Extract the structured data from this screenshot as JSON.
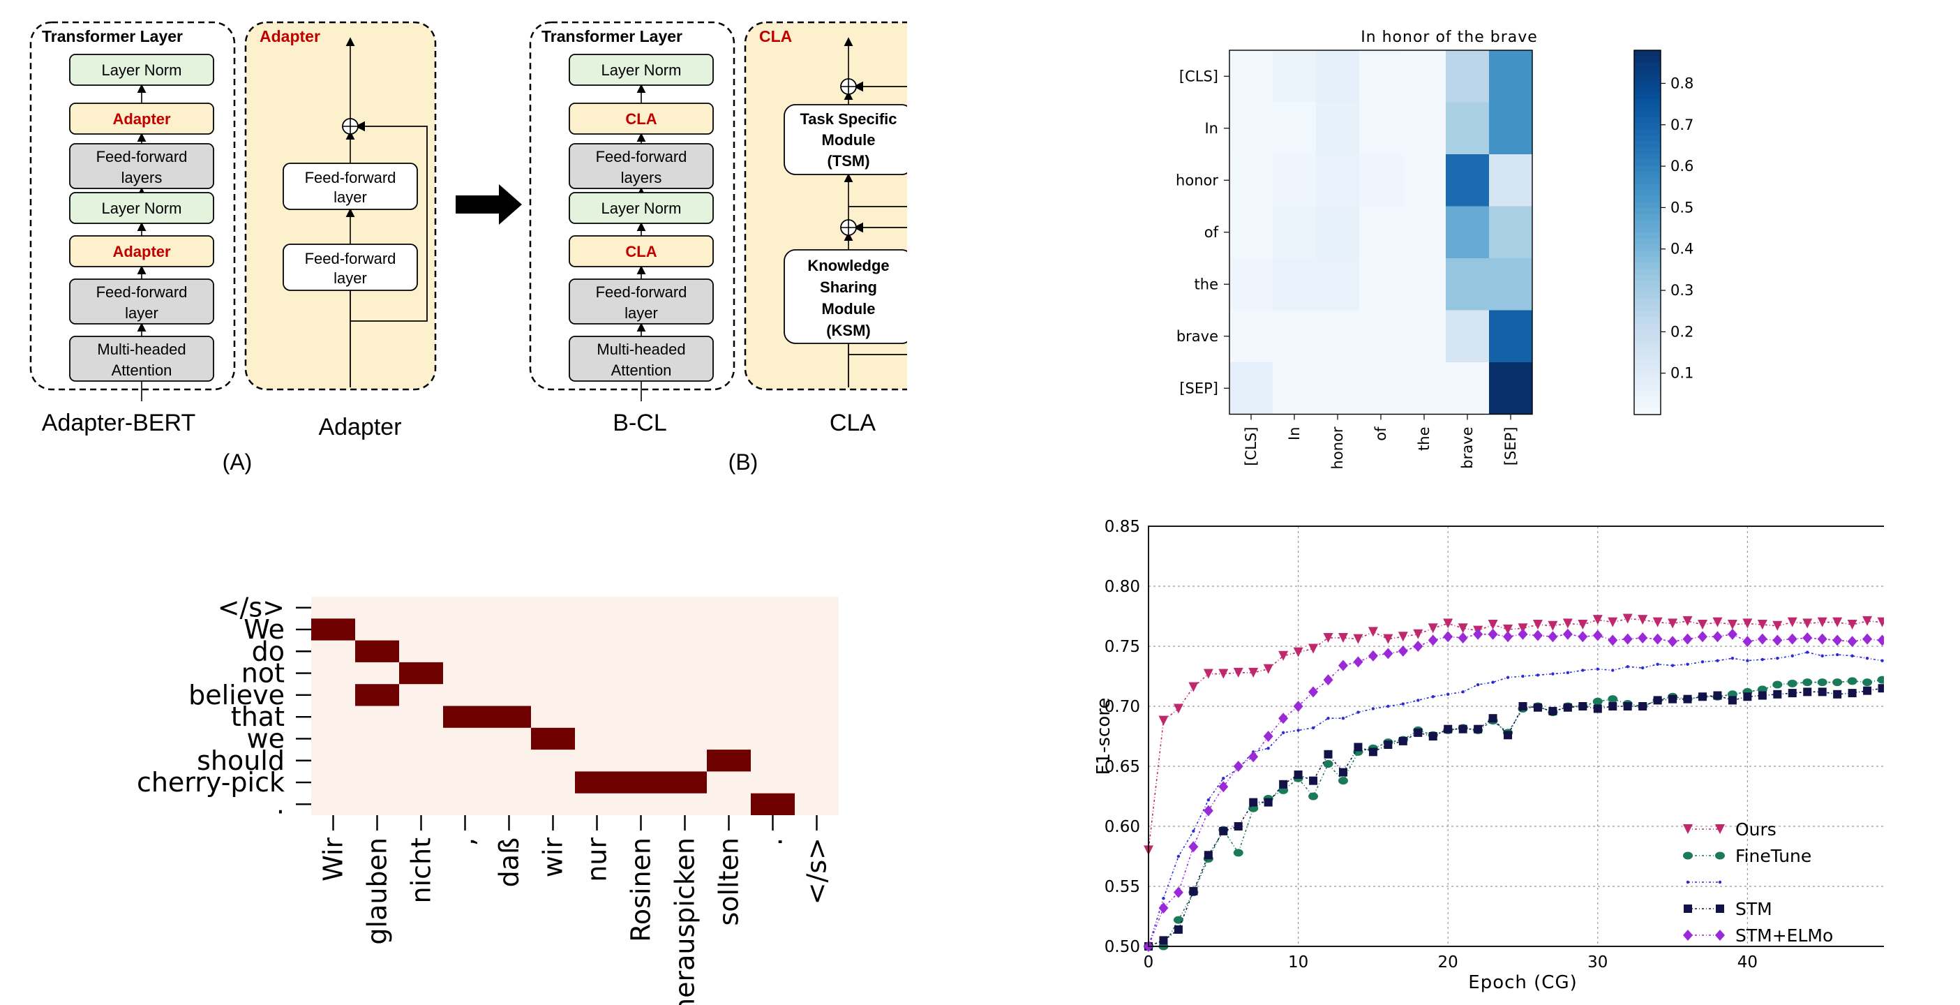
{
  "diagram": {
    "panelA": {
      "transformer_title": "Transformer Layer",
      "blocks": [
        "Layer Norm",
        "Adapter",
        "Feed-forward layers",
        "Layer Norm",
        "Adapter",
        "Feed-forward layer",
        "Multi-headed Attention"
      ],
      "adapter_title": "Adapter",
      "adapter_blocks": [
        "Feed-forward layer",
        "Feed-forward layer"
      ],
      "caption_left": "Adapter-BERT",
      "caption_right": "Adapter",
      "label": "(A)"
    },
    "panelB": {
      "transformer_title": "Transformer Layer",
      "blocks": [
        "Layer Norm",
        "CLA",
        "Feed-forward layers",
        "Layer Norm",
        "CLA",
        "Feed-forward layer",
        "Multi-headed Attention"
      ],
      "cla_title": "CLA",
      "cla_blocks": [
        "Task Specific Module (TSM)",
        "Knowledge Sharing Module (KSM)"
      ],
      "caption_left": "B-CL",
      "caption_right": "CLA",
      "label": "(B)"
    },
    "colors": {
      "adapter_fill": "#fdf0cc",
      "norm_fill": "#e4f3de",
      "gray_fill": "#d9d9d9",
      "red_text": "#c00000"
    }
  },
  "chart_data": [
    {
      "type": "heatmap",
      "title": "In honor of the brave",
      "rows": [
        "[CLS]",
        "In",
        "honor",
        "of",
        "the",
        "brave",
        "[SEP]"
      ],
      "cols": [
        "[CLS]",
        "In",
        "honor",
        "of",
        "the",
        "brave",
        "[SEP]"
      ],
      "values": [
        [
          0.02,
          0.05,
          0.08,
          0.03,
          0.02,
          0.25,
          0.55
        ],
        [
          0.02,
          0.03,
          0.07,
          0.03,
          0.02,
          0.3,
          0.55
        ],
        [
          0.03,
          0.04,
          0.06,
          0.04,
          0.03,
          0.68,
          0.15
        ],
        [
          0.03,
          0.05,
          0.07,
          0.03,
          0.02,
          0.45,
          0.3
        ],
        [
          0.04,
          0.06,
          0.06,
          0.02,
          0.02,
          0.35,
          0.35
        ],
        [
          0.02,
          0.03,
          0.03,
          0.02,
          0.02,
          0.15,
          0.72
        ],
        [
          0.08,
          0.02,
          0.02,
          0.02,
          0.02,
          0.02,
          0.88
        ]
      ],
      "colorbar_ticks": [
        "0.1",
        "0.2",
        "0.3",
        "0.4",
        "0.5",
        "0.6",
        "0.7",
        "0.8"
      ],
      "colorbar_range": [
        0,
        0.88
      ]
    },
    {
      "type": "heatmap",
      "title": "",
      "rows": [
        "</s>",
        "We",
        "do",
        "not",
        "believe",
        "that",
        "we",
        "should",
        "cherry-pick",
        "."
      ],
      "cols": [
        "Wir",
        "glauben",
        "nicht",
        ",",
        "daß",
        "wir",
        "nur",
        "Rosinen",
        "herauspicken",
        "sollten",
        ".",
        "</s>"
      ],
      "cells": [
        [
          1,
          0
        ],
        [
          2,
          1
        ],
        [
          3,
          2
        ],
        [
          4,
          1
        ],
        [
          5,
          3
        ],
        [
          5,
          4
        ],
        [
          6,
          5
        ],
        [
          7,
          9
        ],
        [
          8,
          6
        ],
        [
          8,
          7
        ],
        [
          8,
          8
        ],
        [
          9,
          10
        ]
      ],
      "background": "#fdf1ec",
      "active": "#6e0000"
    },
    {
      "type": "line",
      "xlabel": "Epoch (CG)",
      "ylabel": "F1-score",
      "xlim": [
        0,
        50
      ],
      "ylim": [
        0.5,
        0.85
      ],
      "xticks": [
        "0",
        "10",
        "20",
        "30",
        "40",
        "50"
      ],
      "yticks": [
        "0.50",
        "0.55",
        "0.60",
        "0.65",
        "0.70",
        "0.75",
        "0.80",
        "0.85"
      ],
      "x": [
        0,
        1,
        2,
        3,
        4,
        5,
        6,
        7,
        8,
        9,
        10,
        11,
        12,
        13,
        14,
        15,
        16,
        17,
        18,
        19,
        20,
        21,
        22,
        23,
        24,
        25,
        26,
        27,
        28,
        29,
        30,
        31,
        32,
        33,
        34,
        35,
        36,
        37,
        38,
        39,
        40,
        41,
        42,
        43,
        44,
        45,
        46,
        47,
        48,
        49
      ],
      "series": [
        {
          "name": "Ours",
          "color": "#c0286e",
          "marker": "triangle",
          "values": [
            0.58,
            0.688,
            0.698,
            0.716,
            0.727,
            0.727,
            0.728,
            0.728,
            0.731,
            0.742,
            0.745,
            0.748,
            0.757,
            0.757,
            0.756,
            0.762,
            0.756,
            0.758,
            0.76,
            0.765,
            0.769,
            0.765,
            0.763,
            0.768,
            0.764,
            0.765,
            0.768,
            0.767,
            0.769,
            0.768,
            0.772,
            0.77,
            0.773,
            0.772,
            0.77,
            0.769,
            0.771,
            0.768,
            0.77,
            0.768,
            0.769,
            0.768,
            0.767,
            0.77,
            0.769,
            0.77,
            0.77,
            0.768,
            0.771,
            0.77
          ]
        },
        {
          "name": "FineTune",
          "color": "#1a7a5a",
          "marker": "circle",
          "values": [
            0.5,
            0.5,
            0.522,
            0.545,
            0.573,
            0.597,
            0.578,
            0.615,
            0.623,
            0.63,
            0.64,
            0.625,
            0.652,
            0.638,
            0.662,
            0.665,
            0.67,
            0.672,
            0.68,
            0.676,
            0.68,
            0.682,
            0.68,
            0.688,
            0.678,
            0.698,
            0.7,
            0.695,
            0.7,
            0.7,
            0.704,
            0.706,
            0.702,
            0.7,
            0.705,
            0.708,
            0.706,
            0.708,
            0.708,
            0.71,
            0.712,
            0.714,
            0.718,
            0.719,
            0.72,
            0.72,
            0.72,
            0.721,
            0.72,
            0.722
          ]
        },
        {
          "name": "",
          "color": "#2a2ad8",
          "marker": "dot",
          "values": [
            0.5,
            0.54,
            0.575,
            0.596,
            0.622,
            0.64,
            0.648,
            0.662,
            0.665,
            0.678,
            0.68,
            0.682,
            0.69,
            0.69,
            0.695,
            0.698,
            0.7,
            0.702,
            0.705,
            0.708,
            0.71,
            0.712,
            0.718,
            0.72,
            0.724,
            0.725,
            0.726,
            0.727,
            0.728,
            0.73,
            0.731,
            0.73,
            0.733,
            0.732,
            0.735,
            0.734,
            0.735,
            0.737,
            0.738,
            0.74,
            0.738,
            0.739,
            0.74,
            0.742,
            0.745,
            0.742,
            0.743,
            0.742,
            0.74,
            0.738
          ]
        },
        {
          "name": "STM",
          "color": "#121248",
          "marker": "square",
          "values": [
            0.5,
            0.505,
            0.514,
            0.546,
            0.576,
            0.596,
            0.6,
            0.62,
            0.62,
            0.635,
            0.643,
            0.638,
            0.66,
            0.645,
            0.666,
            0.662,
            0.668,
            0.671,
            0.678,
            0.675,
            0.681,
            0.681,
            0.681,
            0.69,
            0.676,
            0.7,
            0.699,
            0.696,
            0.699,
            0.7,
            0.698,
            0.7,
            0.7,
            0.7,
            0.705,
            0.706,
            0.706,
            0.708,
            0.709,
            0.705,
            0.708,
            0.709,
            0.71,
            0.711,
            0.712,
            0.712,
            0.71,
            0.711,
            0.713,
            0.715
          ]
        },
        {
          "name": "STM+ELMo",
          "color": "#9a2ad8",
          "marker": "diamond",
          "values": [
            0.5,
            0.532,
            0.545,
            0.583,
            0.613,
            0.633,
            0.65,
            0.658,
            0.675,
            0.69,
            0.7,
            0.712,
            0.722,
            0.734,
            0.737,
            0.742,
            0.744,
            0.746,
            0.75,
            0.755,
            0.758,
            0.757,
            0.76,
            0.76,
            0.758,
            0.76,
            0.759,
            0.758,
            0.76,
            0.758,
            0.759,
            0.755,
            0.756,
            0.757,
            0.756,
            0.754,
            0.756,
            0.758,
            0.758,
            0.76,
            0.754,
            0.756,
            0.755,
            0.756,
            0.757,
            0.756,
            0.755,
            0.754,
            0.756,
            0.755
          ]
        }
      ],
      "legend": [
        "Ours",
        "FineTune",
        "",
        "STM",
        "STM+ELMo"
      ],
      "legend_position": "lower-right",
      "grid": true
    }
  ]
}
